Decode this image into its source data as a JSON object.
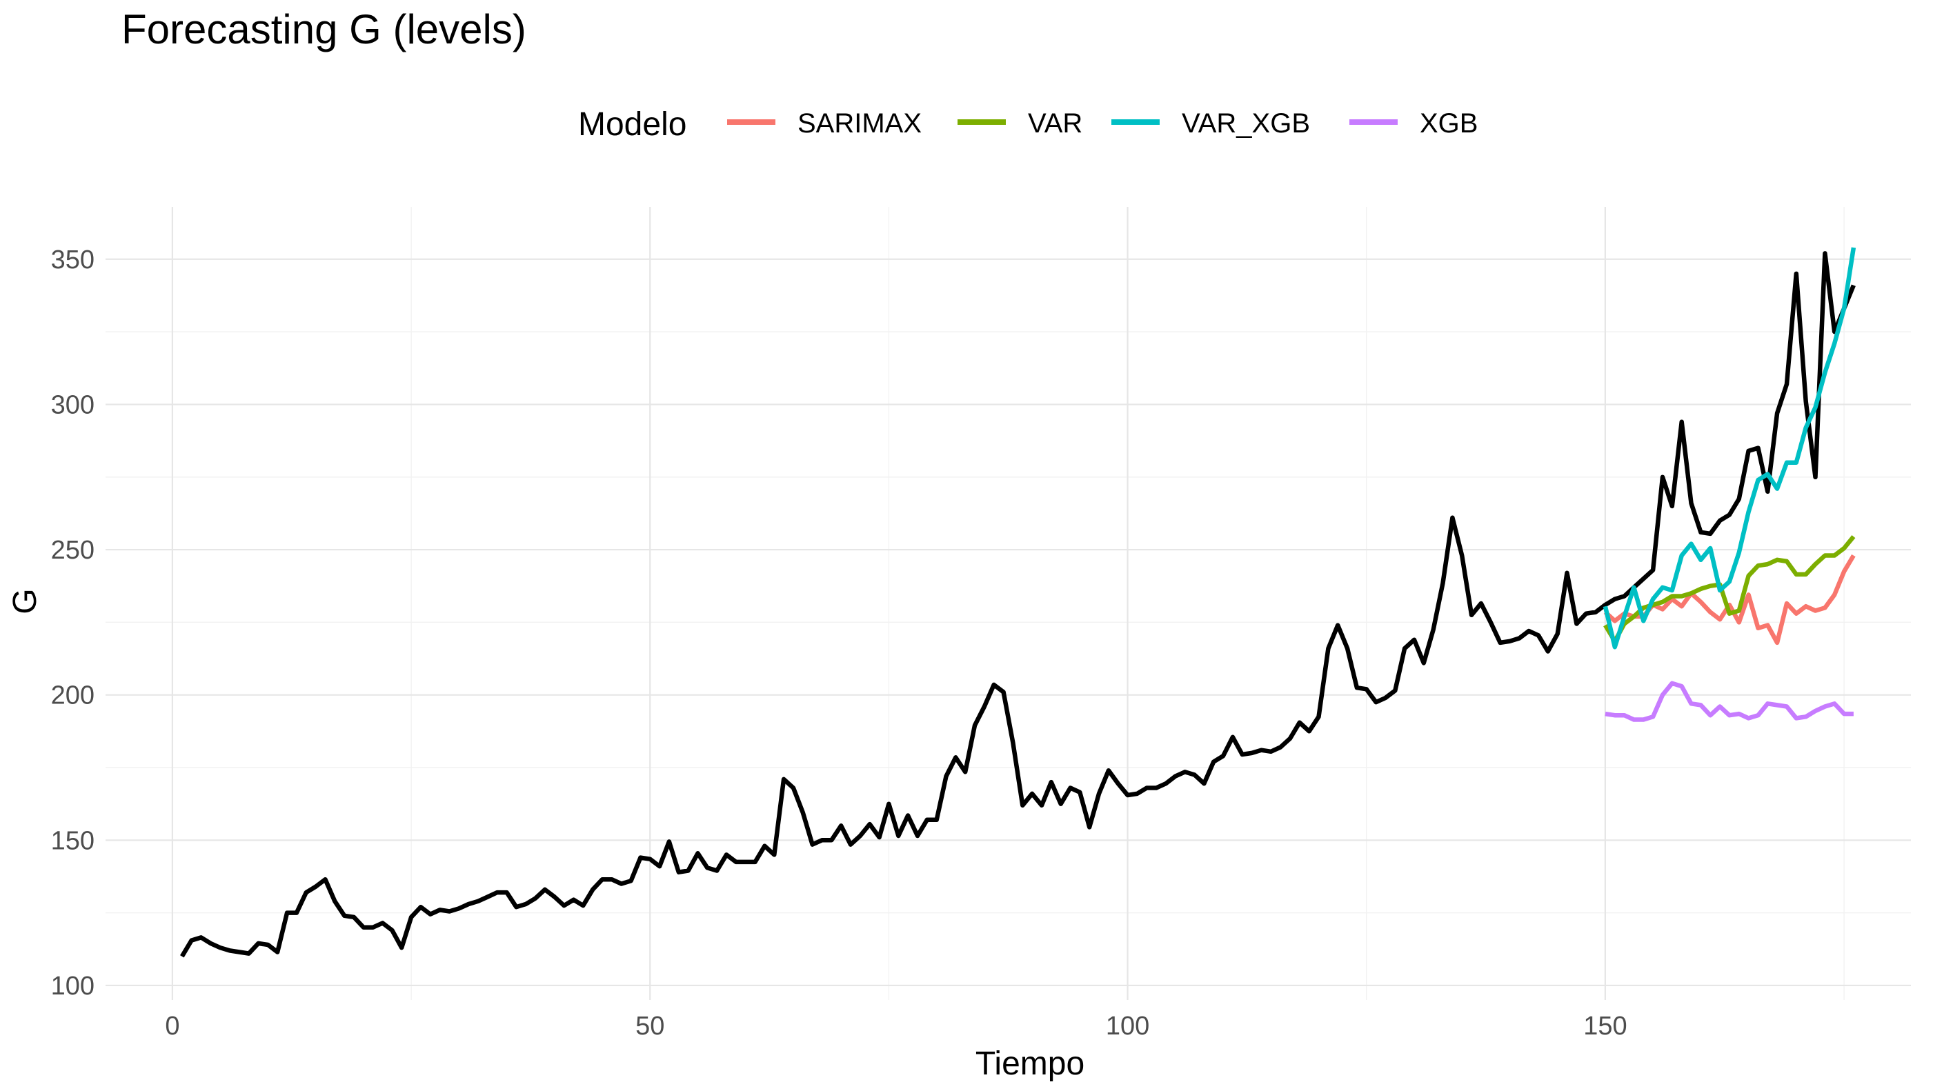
{
  "chart_data": {
    "type": "line",
    "title": "Forecasting G (levels)",
    "xlabel": "Tiempo",
    "ylabel": "G",
    "xlim": [
      -7,
      182
    ],
    "ylim": [
      95,
      368
    ],
    "x_ticks": [
      0,
      50,
      100,
      150
    ],
    "x_tick_labels": [
      "0",
      "50",
      "100",
      "150"
    ],
    "y_ticks": [
      100,
      150,
      200,
      250,
      300,
      350
    ],
    "y_tick_labels": [
      "100",
      "150",
      "200",
      "250",
      "300",
      "350"
    ],
    "grid": true,
    "legend": {
      "title": "Modelo",
      "position": "top",
      "entries": [
        "SARIMAX",
        "VAR",
        "VAR_XGB",
        "XGB"
      ]
    },
    "actual": {
      "color": "#000000",
      "x": [
        1,
        2,
        3,
        4,
        5,
        6,
        7,
        8,
        9,
        10,
        11,
        12,
        13,
        14,
        15,
        16,
        17,
        18,
        19,
        20,
        21,
        22,
        23,
        24,
        25,
        26,
        27,
        28,
        29,
        30,
        31,
        32,
        33,
        34,
        35,
        36,
        37,
        38,
        39,
        40,
        41,
        42,
        43,
        44,
        45,
        46,
        47,
        48,
        49,
        50,
        51,
        52,
        53,
        54,
        55,
        56,
        57,
        58,
        59,
        60,
        61,
        62,
        63,
        64,
        65,
        66,
        67,
        68,
        69,
        70,
        71,
        72,
        73,
        74,
        75,
        76,
        77,
        78,
        79,
        80,
        81,
        82,
        83,
        84,
        85,
        86,
        87,
        88,
        89,
        90,
        91,
        92,
        93,
        94,
        95,
        96,
        97,
        98,
        99,
        100,
        101,
        102,
        103,
        104,
        105,
        106,
        107,
        108,
        109,
        110,
        111,
        112,
        113,
        114,
        115,
        116,
        117,
        118,
        119,
        120,
        121,
        122,
        123,
        124,
        125,
        126,
        127,
        128,
        129,
        130,
        131,
        132,
        133,
        134,
        135,
        136,
        137,
        138,
        139,
        140,
        141,
        142,
        143,
        144,
        145,
        146,
        147,
        148,
        149,
        150,
        151,
        152,
        153,
        154,
        155,
        156,
        157,
        158,
        159,
        160,
        161,
        162,
        163,
        164,
        165,
        166,
        167,
        168,
        169,
        170,
        171,
        172,
        173,
        174,
        175,
        176
      ],
      "y": [
        110,
        115.5,
        116.5,
        114.5,
        113,
        112,
        111.5,
        111,
        114.5,
        114,
        111.5,
        125,
        125,
        132,
        134,
        136.5,
        129,
        124,
        123.5,
        120,
        120,
        121.5,
        119,
        113,
        123.5,
        127,
        124.5,
        126,
        125.5,
        126.5,
        128,
        129,
        130.5,
        132,
        132,
        127,
        128,
        130,
        133,
        130.5,
        127.5,
        129.5,
        127.5,
        133,
        136.5,
        136.5,
        135,
        136,
        144,
        143.5,
        141,
        149.5,
        139,
        139.5,
        145.5,
        140.5,
        139.5,
        145,
        142.5,
        142.5,
        142.5,
        148,
        145,
        171,
        168,
        159.5,
        148.5,
        150,
        150,
        155,
        148.5,
        151.5,
        155.5,
        151,
        162.5,
        151.5,
        158.5,
        151.5,
        157,
        157,
        172,
        178.5,
        173.5,
        189.5,
        196,
        203.5,
        201,
        183.5,
        162,
        166,
        162,
        170,
        162.5,
        168,
        166.5,
        154.5,
        166,
        174,
        169.5,
        165.5,
        166,
        168,
        168,
        169.5,
        172,
        173.5,
        172.5,
        169.5,
        177,
        179,
        185.5,
        179.5,
        180,
        181,
        180.5,
        182,
        185,
        190.5,
        187.5,
        192.5,
        216,
        224,
        216,
        202.5,
        202,
        197.5,
        199,
        201.5,
        216,
        219,
        211,
        222.5,
        238.5,
        261,
        248,
        227.5,
        231.5,
        225,
        218,
        218.5,
        219.5,
        222,
        220.5,
        215,
        221,
        242,
        224.5,
        228,
        228.5,
        231,
        233,
        234,
        237,
        240,
        243,
        275,
        265,
        294,
        266,
        256,
        255.5,
        260,
        262,
        267.5,
        284,
        285,
        270,
        297,
        307,
        345,
        301,
        275,
        352,
        325,
        333,
        341
      ]
    },
    "series": [
      {
        "name": "SARIMAX",
        "color": "#F8766D",
        "x": [
          150,
          151,
          152,
          153,
          154,
          155,
          156,
          157,
          158,
          159,
          160,
          161,
          162,
          163,
          164,
          165,
          166,
          167,
          168,
          169,
          170,
          171,
          172,
          173,
          174,
          175,
          176
        ],
        "y": [
          228.5,
          225.5,
          228,
          227,
          227,
          231,
          229.5,
          233,
          230.5,
          235,
          232,
          228.5,
          226,
          231,
          225,
          234.5,
          223,
          224,
          218,
          231.5,
          228,
          230.5,
          229,
          230,
          234.5,
          242.5,
          248
        ]
      },
      {
        "name": "VAR",
        "color": "#7CAE00",
        "x": [
          150,
          151,
          152,
          153,
          154,
          155,
          156,
          157,
          158,
          159,
          160,
          161,
          162,
          163,
          164,
          165,
          166,
          167,
          168,
          169,
          170,
          171,
          172,
          173,
          174,
          175,
          176
        ],
        "y": [
          224,
          218.5,
          224.5,
          227,
          230,
          231,
          232,
          234,
          234,
          235,
          236.5,
          237.5,
          238,
          228,
          229,
          241,
          244.5,
          245,
          246.5,
          246,
          241.5,
          241.5,
          245,
          248,
          248,
          250.5,
          254.5
        ]
      },
      {
        "name": "VAR_XGB",
        "color": "#00BFC4",
        "x": [
          150,
          151,
          152,
          153,
          154,
          155,
          156,
          157,
          158,
          159,
          160,
          161,
          162,
          163,
          164,
          165,
          166,
          167,
          168,
          169,
          170,
          171,
          172,
          173,
          174,
          175,
          176
        ],
        "y": [
          230.5,
          216.5,
          227,
          237,
          225.5,
          233,
          237,
          236,
          248,
          252,
          246.5,
          250.5,
          236,
          239,
          249,
          263,
          274,
          276,
          271,
          280,
          280,
          292,
          299,
          311,
          321,
          333,
          354
        ]
      },
      {
        "name": "XGB",
        "color": "#C77CFF",
        "x": [
          150,
          151,
          152,
          153,
          154,
          155,
          156,
          157,
          158,
          159,
          160,
          161,
          162,
          163,
          164,
          165,
          166,
          167,
          168,
          169,
          170,
          171,
          172,
          173,
          174,
          175,
          176
        ],
        "y": [
          193.5,
          193,
          193,
          191.5,
          191.5,
          192.5,
          200,
          204,
          203,
          197,
          196.5,
          193,
          196,
          193,
          193.5,
          192,
          193,
          197,
          196.5,
          196,
          192,
          192.5,
          194.5,
          196,
          197,
          193.5,
          193.5
        ]
      }
    ]
  }
}
